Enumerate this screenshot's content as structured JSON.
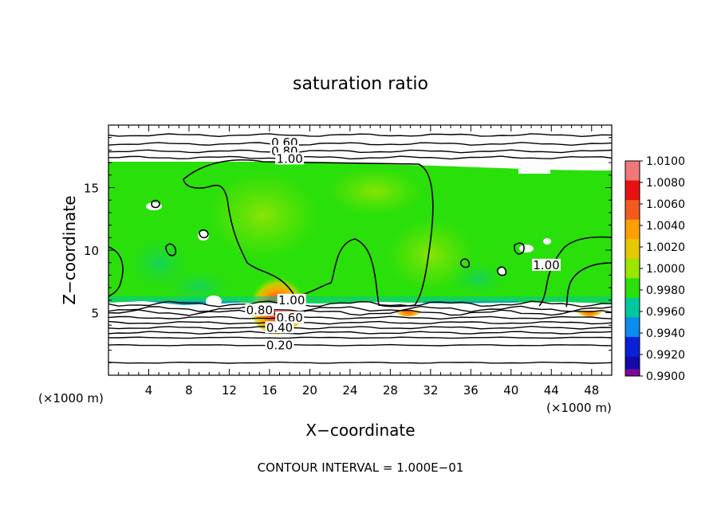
{
  "chart_data": {
    "type": "heatmap",
    "title": "saturation ratio",
    "xlabel": "X−coordinate",
    "ylabel": "Z−coordinate",
    "x_unit_note": "(×1000 m)",
    "z_unit_note": "(×1000 m)",
    "footer": "CONTOUR INTERVAL = 1.000E−01",
    "xlim": [
      0,
      50
    ],
    "ylim": [
      0,
      20
    ],
    "x_ticks": [
      4,
      8,
      12,
      16,
      20,
      24,
      28,
      32,
      36,
      40,
      44,
      48
    ],
    "y_ticks": [
      5,
      10,
      15
    ],
    "colorbar": {
      "labels": [
        "1.0100",
        "1.0080",
        "1.0060",
        "1.0040",
        "1.0020",
        "1.0000",
        "0.9980",
        "0.9960",
        "0.9940",
        "0.9920",
        "0.9900"
      ],
      "colors": [
        "#f07878",
        "#e81010",
        "#f25a1e",
        "#ffa000",
        "#e6c800",
        "#9be600",
        "#2ae00a",
        "#00c89c",
        "#0a8cf0",
        "#0a20d8",
        "#140aa8",
        "#7a0a9c"
      ]
    },
    "contour_labels": [
      {
        "text": "0.60",
        "x": 17.5,
        "z": 18.6
      },
      {
        "text": "0.80",
        "x": 17.5,
        "z": 17.9
      },
      {
        "text": "1.00",
        "x": 18.0,
        "z": 17.3
      },
      {
        "text": "1.00",
        "x": 18.2,
        "z": 6.0
      },
      {
        "text": "1.00",
        "x": 43.5,
        "z": 8.8
      },
      {
        "text": "0.80",
        "x": 15.0,
        "z": 5.2
      },
      {
        "text": "0.60",
        "x": 18.0,
        "z": 4.6
      },
      {
        "text": "0.40",
        "x": 17.0,
        "z": 3.8
      },
      {
        "text": "0.20",
        "x": 17.0,
        "z": 2.4
      }
    ],
    "upper_isolines_z": [
      19.2,
      18.5,
      17.9,
      17.4
    ],
    "lower_isolines_z": [
      5.7,
      5.3,
      5.0,
      4.6,
      4.2,
      3.8,
      3.4,
      3.0,
      2.4,
      1.0
    ],
    "hot_spots": [
      {
        "x": 16.8,
        "z": 5.8,
        "peak": "1.0100"
      },
      {
        "x": 29.8,
        "z": 5.6,
        "peak": "1.0060"
      },
      {
        "x": 47.8,
        "z": 5.6,
        "peak": "1.0060"
      }
    ]
  }
}
